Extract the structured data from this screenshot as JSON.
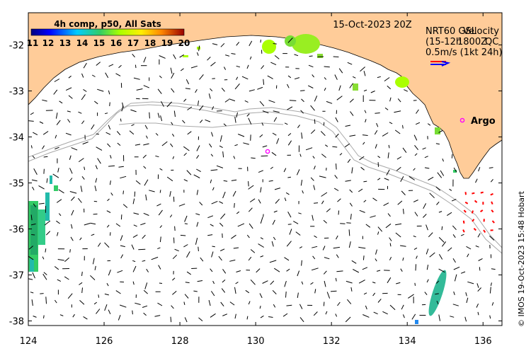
{
  "map": {
    "date_title": "15-Oct-2023 20Z",
    "colorbar": {
      "label": "4h comp, p50, All Sats",
      "ticks": [
        "11",
        "12",
        "13",
        "14",
        "15",
        "16",
        "17",
        "18",
        "19",
        "20"
      ],
      "vmin": 11,
      "vmax": 20
    },
    "velocity_legend": {
      "line1_a": "NRT60 GSL",
      "line1_b": "Velocity",
      "line2_a": "(15-12h",
      "line2_b": "1800Z",
      "line2_c": "QC",
      "line3": "0.5m/s (1kt 24h)",
      "arrow_colors": [
        "#ff0000",
        "#0000ff"
      ]
    },
    "argo_label": "Argo",
    "credit": "© IMOS 19-Oct-2023 15:48 Hobart",
    "x_axis": {
      "ticks": [
        "124",
        "126",
        "128",
        "130",
        "132",
        "134",
        "136"
      ],
      "range": [
        124,
        136.5
      ]
    },
    "y_axis": {
      "ticks": [
        "-32",
        "-33",
        "-34",
        "-35",
        "-36",
        "-37",
        "-38"
      ],
      "range": [
        -38.1,
        -31.3
      ]
    },
    "colors": {
      "land": "#ffcc99",
      "ocean": "#ffffff",
      "bathymetry": "#a8a8a8",
      "argo_marker": "#ff00ff",
      "current_arrow": "#000000",
      "argo_track": "#ff0000"
    }
  }
}
